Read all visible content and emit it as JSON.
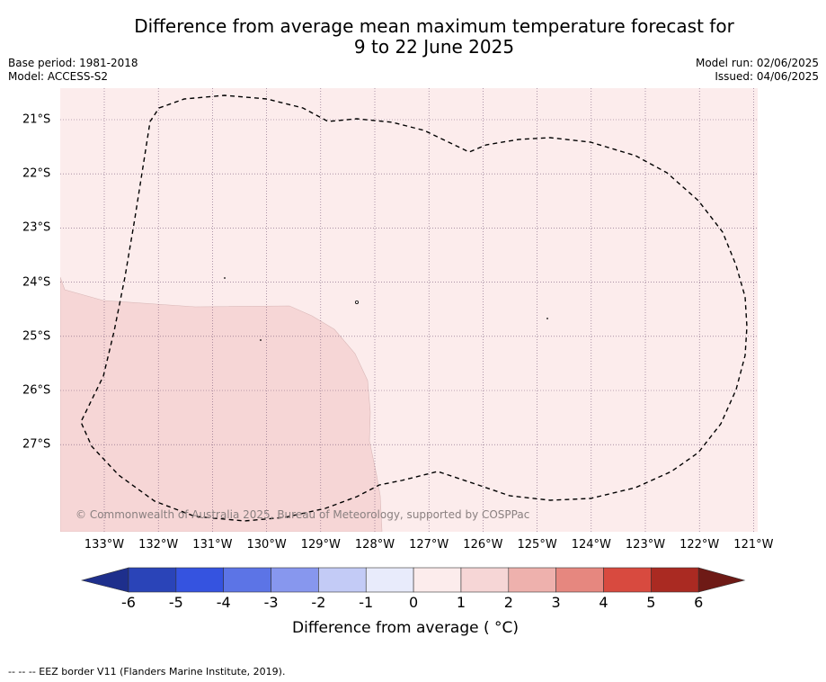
{
  "title_line1": "Difference from average mean maximum temperature forecast for",
  "title_line2": "9 to 22 June 2025",
  "meta_left": {
    "base_period": "Base period: 1981-2018",
    "model": "Model: ACCESS-S2"
  },
  "meta_right": {
    "model_run": "Model run: 02/06/2025",
    "issued": "Issued: 04/06/2025"
  },
  "longitudes": [
    "133°W",
    "132°W",
    "131°W",
    "130°W",
    "129°W",
    "128°W",
    "127°W",
    "126°W",
    "125°W",
    "124°W",
    "123°W",
    "122°W",
    "121°W"
  ],
  "latitudes": [
    "21°S",
    "22°S",
    "23°S",
    "24°S",
    "25°S",
    "26°S",
    "27°S"
  ],
  "colorbar": {
    "ticks": [
      "-6",
      "-5",
      "-4",
      "-3",
      "-2",
      "-1",
      "0",
      "1",
      "2",
      "3",
      "4",
      "5",
      "6"
    ],
    "colors": [
      "#1e2f8c",
      "#2a44b8",
      "#3553e0",
      "#5c74e6",
      "#8797ee",
      "#c3cbf6",
      "#e8ebfb",
      "#fcecec",
      "#f6d6d6",
      "#eeb1ad",
      "#e6877f",
      "#d84a3f",
      "#aa2a22",
      "#6e1a16"
    ],
    "label": "Difference from average ( °C)"
  },
  "copyright": "© Commonwealth of Australia 2025, Bureau of Meteorology, supported by COSPPac",
  "footer": "--  --  -- EEZ border V11 (Flanders Marine Institute, 2019)."
}
